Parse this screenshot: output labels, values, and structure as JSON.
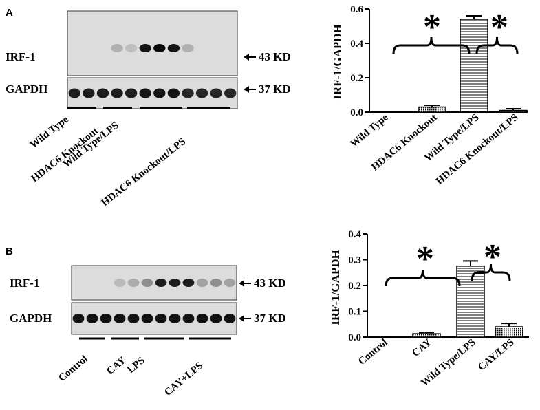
{
  "panels": [
    {
      "letter": "A",
      "blot": {
        "rows": [
          {
            "name": "IRF-1",
            "size": "43 KD",
            "band_levels": [
              0,
              0,
              0,
              0.12,
              0.05,
              0.95,
              1.0,
              0.95,
              0.12,
              0,
              0,
              0
            ]
          },
          {
            "name": "GAPDH",
            "size": "37 KD",
            "band_levels": [
              0.9,
              0.9,
              0.9,
              0.9,
              0.9,
              0.95,
              0.95,
              0.95,
              0.85,
              0.85,
              0.85,
              0.85
            ]
          }
        ],
        "groups": [
          "Wild Type",
          "HDAC6 Knockout",
          "Wild Type/LPS",
          "HDAC6 Knockout/LPS"
        ]
      }
    },
    {
      "letter": "B",
      "blot": {
        "rows": [
          {
            "name": "IRF-1",
            "size": "43 KD",
            "band_levels": [
              0,
              0,
              0,
              0.08,
              0.15,
              0.3,
              0.9,
              0.9,
              0.9,
              0.2,
              0.3,
              0.2
            ]
          },
          {
            "name": "GAPDH",
            "size": "37 KD",
            "band_levels": [
              0.95,
              0.95,
              0.95,
              0.95,
              0.95,
              0.95,
              0.95,
              0.95,
              0.95,
              0.95,
              0.95,
              0.95
            ]
          }
        ],
        "groups": [
          "Control",
          "CAY",
          "LPS",
          "CAY+LPS"
        ]
      }
    }
  ],
  "chart_data": [
    {
      "type": "bar",
      "title": "",
      "xlabel": "",
      "ylabel": "IRF-1/GAPDH",
      "categories": [
        "Wild Type",
        "HDAC6 Knockout",
        "Wild Type/LPS",
        "HDAC6 Knockout/LPS"
      ],
      "values": [
        0,
        0.03,
        0.54,
        0.01
      ],
      "errors": [
        0,
        0.01,
        0.02,
        0.01
      ],
      "ylim": [
        0,
        0.6
      ],
      "yticks": [
        "0.0",
        "0.2",
        "0.4",
        "0.6"
      ],
      "significance": [
        "*",
        "*"
      ]
    },
    {
      "type": "bar",
      "title": "",
      "xlabel": "",
      "ylabel": "IRF-1/GAPDH",
      "categories": [
        "Control",
        "CAY",
        "Wild Type/LPS",
        "CAY/LPS"
      ],
      "values": [
        0,
        0.013,
        0.275,
        0.04
      ],
      "errors": [
        0,
        0.005,
        0.02,
        0.013
      ],
      "ylim": [
        0,
        0.4
      ],
      "yticks": [
        "0.0",
        "0.1",
        "0.2",
        "0.3",
        "0.4"
      ],
      "significance": [
        "*",
        "*"
      ]
    }
  ]
}
